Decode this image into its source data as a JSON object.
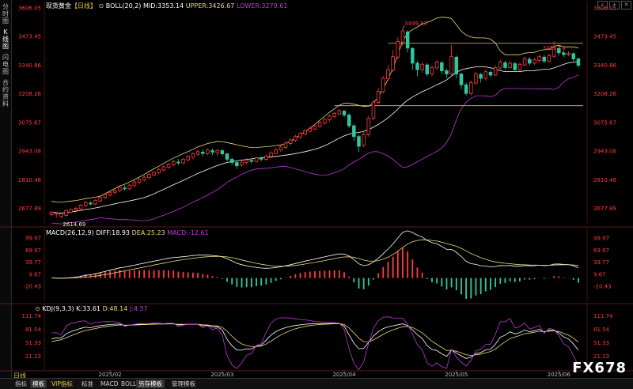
{
  "side_tabs": [
    "分时图",
    "K线图",
    "闪电图",
    "合约资料"
  ],
  "main_info": {
    "name": "现货黄金",
    "period": "【日线】",
    "boll": "BOLL(20,2)",
    "mid": "MID:3353.14",
    "upper": "UPPER:3426.67",
    "lower": "LOWER:3279.61"
  },
  "macd_info": {
    "title": "MACD(26,12,9)",
    "diff": "DIFF:18.93",
    "dea": "DEA:25.23",
    "macd": "MACD:-12.61"
  },
  "kdj_info": {
    "title": "KDJ(9,3,3)",
    "k": "K:33.61",
    "d": "D:48.14",
    "j": "J:4.57"
  },
  "price_axis": [
    "3606.05",
    "3473.45",
    "3340.86",
    "3208.26",
    "3075.67",
    "2943.08",
    "2810.48",
    "2677.89"
  ],
  "macd_axis": [
    "99.97",
    "69.97",
    "39.77",
    "9.67",
    "-20.43"
  ],
  "kdj_axis": [
    "111.74",
    "81.54",
    "51.33",
    "21.13"
  ],
  "months": [
    "2025/02",
    "2025/03",
    "2025/04",
    "2025/05",
    "2025/06"
  ],
  "annotations": {
    "high1": "3499.83",
    "high2": "3451.14",
    "low1": "2614.69"
  },
  "period_badge": "日线",
  "bottom_tabs": [
    "指标",
    "模板",
    "VIP指标",
    "标准",
    "MACD",
    "BOLL",
    "另存模板",
    "管理模板"
  ],
  "bottom_active": "模板",
  "watermark": "FX678",
  "colors": {
    "up": "#ff3b3b",
    "down": "#2ec7a0",
    "mid": "#ffffff",
    "upper": "#e8d97a",
    "lower": "#c038d8",
    "dea": "#e8d97a",
    "j": "#c038d8",
    "priceText": "#ff3b3b"
  },
  "chart_data": {
    "type": "candlestick",
    "ylim": [
      2610,
      3606
    ],
    "candles": [
      [
        2648,
        2660,
        2640,
        2665
      ],
      [
        2650,
        2655,
        2635,
        2662
      ],
      [
        2640,
        2652,
        2632,
        2658
      ],
      [
        2645,
        2668,
        2640,
        2672
      ],
      [
        2660,
        2672,
        2652,
        2678
      ],
      [
        2670,
        2678,
        2660,
        2685
      ],
      [
        2675,
        2692,
        2668,
        2698
      ],
      [
        2690,
        2705,
        2685,
        2712
      ],
      [
        2702,
        2698,
        2690,
        2712
      ],
      [
        2698,
        2715,
        2692,
        2720
      ],
      [
        2712,
        2730,
        2705,
        2738
      ],
      [
        2728,
        2742,
        2720,
        2748
      ],
      [
        2740,
        2752,
        2732,
        2758
      ],
      [
        2752,
        2760,
        2742,
        2766
      ],
      [
        2760,
        2775,
        2752,
        2782
      ],
      [
        2772,
        2768,
        2760,
        2785
      ],
      [
        2768,
        2785,
        2762,
        2792
      ],
      [
        2782,
        2800,
        2778,
        2808
      ],
      [
        2798,
        2812,
        2790,
        2818
      ],
      [
        2810,
        2822,
        2802,
        2830
      ],
      [
        2820,
        2835,
        2812,
        2842
      ],
      [
        2832,
        2845,
        2825,
        2850
      ],
      [
        2842,
        2858,
        2835,
        2865
      ],
      [
        2855,
        2870,
        2848,
        2878
      ],
      [
        2868,
        2882,
        2860,
        2888
      ],
      [
        2880,
        2895,
        2872,
        2902
      ],
      [
        2892,
        2888,
        2878,
        2905
      ],
      [
        2888,
        2905,
        2882,
        2912
      ],
      [
        2902,
        2918,
        2895,
        2925
      ],
      [
        2915,
        2930,
        2905,
        2938
      ],
      [
        2928,
        2940,
        2920,
        2948
      ],
      [
        2938,
        2932,
        2920,
        2950
      ],
      [
        2930,
        2948,
        2925,
        2955
      ],
      [
        2945,
        2938,
        2925,
        2955
      ],
      [
        2935,
        2946,
        2920,
        2952
      ],
      [
        2945,
        2930,
        2920,
        2952
      ],
      [
        2930,
        2905,
        2895,
        2935
      ],
      [
        2905,
        2890,
        2878,
        2912
      ],
      [
        2890,
        2875,
        2860,
        2898
      ],
      [
        2878,
        2892,
        2870,
        2898
      ],
      [
        2890,
        2902,
        2882,
        2910
      ],
      [
        2900,
        2895,
        2885,
        2908
      ],
      [
        2895,
        2912,
        2890,
        2918
      ],
      [
        2910,
        2905,
        2895,
        2918
      ],
      [
        2905,
        2920,
        2898,
        2928
      ],
      [
        2918,
        2935,
        2910,
        2942
      ],
      [
        2932,
        2950,
        2928,
        2958
      ],
      [
        2948,
        2962,
        2940,
        2970
      ],
      [
        2960,
        2980,
        2952,
        2988
      ],
      [
        2978,
        2995,
        2970,
        3002
      ],
      [
        2992,
        3010,
        2985,
        3018
      ],
      [
        3008,
        3025,
        3000,
        3032
      ],
      [
        3022,
        3038,
        3015,
        3045
      ],
      [
        3035,
        3048,
        3028,
        3055
      ],
      [
        3045,
        3060,
        3040,
        3068
      ],
      [
        3058,
        3075,
        3050,
        3082
      ],
      [
        3072,
        3090,
        3065,
        3098
      ],
      [
        3088,
        3105,
        3080,
        3112
      ],
      [
        3102,
        3118,
        3095,
        3125
      ],
      [
        3115,
        3130,
        3108,
        3138
      ],
      [
        3128,
        3110,
        3100,
        3135
      ],
      [
        3110,
        3060,
        3050,
        3118
      ],
      [
        3060,
        3010,
        2990,
        3068
      ],
      [
        3010,
        2965,
        2940,
        3020
      ],
      [
        2970,
        3020,
        2960,
        3030
      ],
      [
        3018,
        3095,
        3010,
        3105
      ],
      [
        3095,
        3170,
        3085,
        3180
      ],
      [
        3168,
        3220,
        3160,
        3235
      ],
      [
        3218,
        3280,
        3210,
        3290
      ],
      [
        3278,
        3320,
        3270,
        3340
      ],
      [
        3318,
        3380,
        3310,
        3410
      ],
      [
        3378,
        3450,
        3370,
        3470
      ],
      [
        3448,
        3500,
        3430,
        3510
      ],
      [
        3495,
        3420,
        3400,
        3502
      ],
      [
        3418,
        3350,
        3320,
        3425
      ],
      [
        3350,
        3320,
        3290,
        3360
      ],
      [
        3320,
        3345,
        3305,
        3355
      ],
      [
        3342,
        3300,
        3290,
        3350
      ],
      [
        3300,
        3330,
        3290,
        3340
      ],
      [
        3328,
        3355,
        3320,
        3365
      ],
      [
        3352,
        3315,
        3300,
        3360
      ],
      [
        3315,
        3300,
        3280,
        3325
      ],
      [
        3300,
        3380,
        3295,
        3435
      ],
      [
        3378,
        3300,
        3280,
        3385
      ],
      [
        3300,
        3250,
        3230,
        3305
      ],
      [
        3250,
        3210,
        3200,
        3260
      ],
      [
        3210,
        3260,
        3200,
        3270
      ],
      [
        3258,
        3300,
        3250,
        3310
      ],
      [
        3298,
        3280,
        3260,
        3305
      ],
      [
        3280,
        3310,
        3270,
        3320
      ],
      [
        3308,
        3295,
        3285,
        3318
      ],
      [
        3295,
        3330,
        3290,
        3340
      ],
      [
        3328,
        3355,
        3320,
        3365
      ],
      [
        3352,
        3330,
        3320,
        3362
      ],
      [
        3330,
        3350,
        3325,
        3360
      ],
      [
        3348,
        3320,
        3310,
        3355
      ],
      [
        3320,
        3345,
        3312,
        3352
      ],
      [
        3342,
        3370,
        3335,
        3380
      ],
      [
        3368,
        3350,
        3340,
        3378
      ],
      [
        3350,
        3365,
        3342,
        3375
      ],
      [
        3362,
        3380,
        3355,
        3390
      ],
      [
        3378,
        3360,
        3350,
        3388
      ],
      [
        3360,
        3385,
        3352,
        3395
      ],
      [
        3382,
        3420,
        3375,
        3451
      ],
      [
        3418,
        3398,
        3385,
        3430
      ],
      [
        3398,
        3390,
        3380,
        3410
      ],
      [
        3390,
        3395,
        3382,
        3405
      ],
      [
        3394,
        3370,
        3360,
        3400
      ],
      [
        3370,
        3340,
        3330,
        3375
      ]
    ],
    "macd_ylim": [
      -60,
      110
    ],
    "kdj_ylim": [
      -10,
      125
    ]
  }
}
